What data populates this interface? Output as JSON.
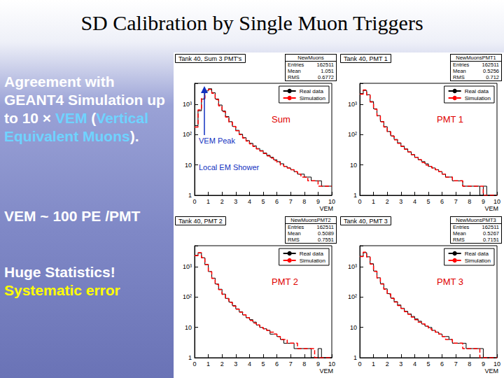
{
  "slide": {
    "title": "SD Calibration by Single Muon Triggers",
    "paragraphs": [
      [
        {
          "text": "Agreement with GEANT4 Simulation up to 10 × ",
          "color": "#ffffff"
        },
        {
          "text": "VEM",
          "color": "#6fd3ff"
        },
        {
          "text": " (",
          "color": "#ffffff"
        },
        {
          "text": "Vertical Equivalent Muons",
          "color": "#6fd3ff"
        },
        {
          "text": ").",
          "color": "#ffffff"
        }
      ],
      [
        {
          "text": "VEM ~ 100 PE /PMT",
          "color": "#ffffff"
        }
      ],
      [
        {
          "text": "Huge Statistics!",
          "color": "#ffffff"
        }
      ],
      [
        {
          "text": "Systematic error",
          "color": "#ffff00"
        }
      ]
    ]
  },
  "chart_data": [
    {
      "type": "histogram",
      "title": "Tank 40, Sum 3 PMT's",
      "x_label": "VEM",
      "stats": {
        "title": "NewMuons",
        "rows": [
          {
            "label": "Entries",
            "value": 162511
          },
          {
            "label": "Mean",
            "value": 1.051
          },
          {
            "label": "RMS",
            "value": 0.6772
          }
        ]
      },
      "annotations": [
        {
          "text": "Sum",
          "color": "#e00000"
        },
        {
          "text": "VEM Peak",
          "color": "#1030c0"
        },
        {
          "text": "Local EM Shower",
          "color": "#1030c0"
        }
      ],
      "bins": [
        0,
        0.25,
        0.5,
        0.75,
        1,
        1.25,
        1.5,
        1.75,
        2,
        2.25,
        2.5,
        2.75,
        3,
        3.25,
        3.5,
        3.75,
        4,
        4.25,
        4.5,
        4.75,
        5,
        5.25,
        5.5,
        5.75,
        6,
        6.25,
        6.5,
        6.75,
        7,
        7.25,
        7.5,
        7.75,
        8,
        8.25,
        8.5,
        8.75,
        9,
        9.25,
        9.5,
        9.75,
        10
      ],
      "series": [
        {
          "name": "Real data",
          "color": "#000000",
          "line_style": "solid",
          "values": [
            200,
            620,
            1500,
            2800,
            3300,
            2450,
            1520,
            960,
            610,
            400,
            270,
            190,
            140,
            104,
            80,
            64,
            52,
            43,
            35,
            30,
            25,
            21,
            18,
            15,
            13,
            11,
            9,
            8,
            7,
            6,
            5,
            5,
            4,
            4,
            3,
            3,
            3,
            2,
            2,
            2
          ]
        },
        {
          "name": "Simulation",
          "color": "#ff0000",
          "line_style": "dashed",
          "values": [
            180,
            660,
            1620,
            2950,
            3150,
            2330,
            1450,
            900,
            580,
            385,
            262,
            186,
            136,
            101,
            78,
            62,
            50,
            41,
            34,
            29,
            24,
            20,
            17,
            14,
            12,
            10,
            9,
            8,
            7,
            6,
            5,
            4,
            4,
            3,
            3,
            3,
            2,
            2,
            2,
            2
          ]
        }
      ],
      "xlim": [
        0,
        10
      ],
      "xticks": [
        0,
        1,
        2,
        3,
        4,
        5,
        6,
        7,
        8,
        9,
        10
      ],
      "ylim": [
        1,
        5000
      ],
      "yticks": [
        1,
        10,
        {
          "value": 100,
          "label": "10²"
        },
        {
          "value": 1000,
          "label": "10³"
        }
      ],
      "log": "y",
      "grid": false,
      "legend": "upper right"
    },
    {
      "type": "histogram",
      "title": "Tank 40, PMT 1",
      "x_label": "VEM",
      "stats": {
        "title": "NewMuonsPMT1",
        "rows": [
          {
            "label": "Entries",
            "value": 162511
          },
          {
            "label": "Mean",
            "value": 0.5256
          },
          {
            "label": "RMS",
            "value": 0.712
          }
        ]
      },
      "annotations": [
        {
          "text": "PMT 1",
          "color": "#e00000"
        }
      ],
      "bins": [
        0,
        0.25,
        0.5,
        0.75,
        1,
        1.25,
        1.5,
        1.75,
        2,
        2.25,
        2.5,
        2.75,
        3,
        3.25,
        3.5,
        3.75,
        4,
        4.25,
        4.5,
        4.75,
        5,
        5.25,
        5.5,
        5.75,
        6,
        6.25,
        6.5,
        6.75,
        7,
        7.25,
        7.5,
        7.75,
        8,
        8.25,
        8.5,
        8.75,
        9,
        9.25,
        9.5,
        9.75,
        10
      ],
      "series": [
        {
          "name": "Real data",
          "color": "#000000",
          "line_style": "solid",
          "values": [
            2300,
            2900,
            2100,
            1250,
            720,
            430,
            275,
            185,
            128,
            92,
            70,
            54,
            42,
            34,
            27,
            22,
            18,
            15,
            13,
            11,
            9,
            8,
            7,
            6,
            5,
            4,
            4,
            3,
            3,
            3,
            2,
            2,
            2,
            2,
            2,
            1,
            2,
            1,
            1,
            1
          ]
        },
        {
          "name": "Simulation",
          "color": "#ff0000",
          "line_style": "dashed",
          "values": [
            2200,
            3000,
            2050,
            1200,
            700,
            420,
            268,
            180,
            125,
            90,
            68,
            52,
            41,
            33,
            27,
            22,
            18,
            15,
            12,
            10,
            9,
            8,
            7,
            6,
            5,
            4,
            4,
            3,
            3,
            3,
            2,
            2,
            2,
            2,
            2,
            2,
            1,
            1,
            1,
            1
          ]
        }
      ],
      "xlim": [
        0,
        10
      ],
      "xticks": [
        0,
        1,
        2,
        3,
        4,
        5,
        6,
        7,
        8,
        9,
        10
      ],
      "ylim": [
        1,
        5000
      ],
      "yticks": [
        1,
        10,
        {
          "value": 100,
          "label": "10²"
        },
        {
          "value": 1000,
          "label": "10³"
        }
      ],
      "log": "y",
      "grid": false,
      "legend": "upper right"
    },
    {
      "type": "histogram",
      "title": "Tank 40, PMT 2",
      "x_label": "VEM",
      "stats": {
        "title": "NewMuonsPMT2",
        "rows": [
          {
            "label": "Entries",
            "value": 162511
          },
          {
            "label": "Mean",
            "value": 0.5089
          },
          {
            "label": "RMS",
            "value": 0.7551
          }
        ]
      },
      "annotations": [
        {
          "text": "PMT 2",
          "color": "#e00000"
        }
      ],
      "bins": [
        0,
        0.25,
        0.5,
        0.75,
        1,
        1.25,
        1.5,
        1.75,
        2,
        2.25,
        2.5,
        2.75,
        3,
        3.25,
        3.5,
        3.75,
        4,
        4.25,
        4.5,
        4.75,
        5,
        5.25,
        5.5,
        5.75,
        6,
        6.25,
        6.5,
        6.75,
        7,
        7.25,
        7.5,
        7.75,
        8,
        8.25,
        8.5,
        8.75,
        9,
        9.25,
        9.5,
        9.75,
        10
      ],
      "series": [
        {
          "name": "Real data",
          "color": "#000000",
          "line_style": "solid",
          "values": [
            2400,
            2850,
            2000,
            1200,
            700,
            425,
            272,
            182,
            126,
            91,
            69,
            53,
            41,
            33,
            26,
            21,
            18,
            15,
            12,
            10,
            9,
            8,
            6,
            6,
            5,
            4,
            3,
            3,
            3,
            2,
            2,
            2,
            2,
            2,
            1,
            1,
            2,
            1,
            1,
            1
          ]
        },
        {
          "name": "Simulation",
          "color": "#ff0000",
          "line_style": "dashed",
          "values": [
            2350,
            2950,
            2000,
            1180,
            690,
            415,
            265,
            178,
            123,
            89,
            67,
            51,
            40,
            32,
            26,
            21,
            17,
            14,
            12,
            10,
            9,
            8,
            7,
            6,
            5,
            4,
            4,
            3,
            3,
            3,
            2,
            2,
            2,
            2,
            2,
            1,
            1,
            1,
            1,
            1
          ]
        }
      ],
      "xlim": [
        0,
        10
      ],
      "xticks": [
        0,
        1,
        2,
        3,
        4,
        5,
        6,
        7,
        8,
        9,
        10
      ],
      "ylim": [
        1,
        5000
      ],
      "yticks": [
        1,
        10,
        {
          "value": 100,
          "label": "10²"
        },
        {
          "value": 1000,
          "label": "10³"
        }
      ],
      "log": "y",
      "grid": false,
      "legend": "upper right"
    },
    {
      "type": "histogram",
      "title": "Tank 40, PMT 3",
      "x_label": "VEM",
      "stats": {
        "title": "NewMuonsPMT3",
        "rows": [
          {
            "label": "Entries",
            "value": 162511
          },
          {
            "label": "Mean",
            "value": 0.5267
          },
          {
            "label": "RMS",
            "value": 0.7151
          }
        ]
      },
      "annotations": [
        {
          "text": "PMT 3",
          "color": "#e00000"
        }
      ],
      "bins": [
        0,
        0.25,
        0.5,
        0.75,
        1,
        1.25,
        1.5,
        1.75,
        2,
        2.25,
        2.5,
        2.75,
        3,
        3.25,
        3.5,
        3.75,
        4,
        4.25,
        4.5,
        4.75,
        5,
        5.25,
        5.5,
        5.75,
        6,
        6.25,
        6.5,
        6.75,
        7,
        7.25,
        7.5,
        7.75,
        8,
        8.25,
        8.5,
        8.75,
        9,
        9.25,
        9.5,
        9.75,
        10
      ],
      "series": [
        {
          "name": "Real data",
          "color": "#000000",
          "line_style": "solid",
          "values": [
            2250,
            2950,
            2150,
            1270,
            730,
            435,
            280,
            187,
            130,
            93,
            71,
            55,
            43,
            34,
            28,
            23,
            19,
            16,
            13,
            11,
            10,
            8,
            7,
            6,
            5,
            5,
            4,
            3,
            3,
            3,
            3,
            2,
            2,
            2,
            2,
            2,
            1,
            1,
            1,
            1
          ]
        },
        {
          "name": "Simulation",
          "color": "#ff0000",
          "line_style": "dashed",
          "values": [
            2200,
            3050,
            2100,
            1230,
            710,
            425,
            272,
            183,
            127,
            91,
            69,
            53,
            42,
            33,
            27,
            22,
            18,
            15,
            13,
            11,
            9,
            8,
            7,
            6,
            5,
            4,
            4,
            3,
            3,
            3,
            2,
            2,
            2,
            2,
            2,
            1,
            1,
            1,
            1,
            1
          ]
        }
      ],
      "xlim": [
        0,
        10
      ],
      "xticks": [
        0,
        1,
        2,
        3,
        4,
        5,
        6,
        7,
        8,
        9,
        10
      ],
      "ylim": [
        1,
        5000
      ],
      "yticks": [
        1,
        10,
        {
          "value": 100,
          "label": "10²"
        },
        {
          "value": 1000,
          "label": "10³"
        }
      ],
      "log": "y",
      "grid": false,
      "legend": "upper right"
    }
  ]
}
